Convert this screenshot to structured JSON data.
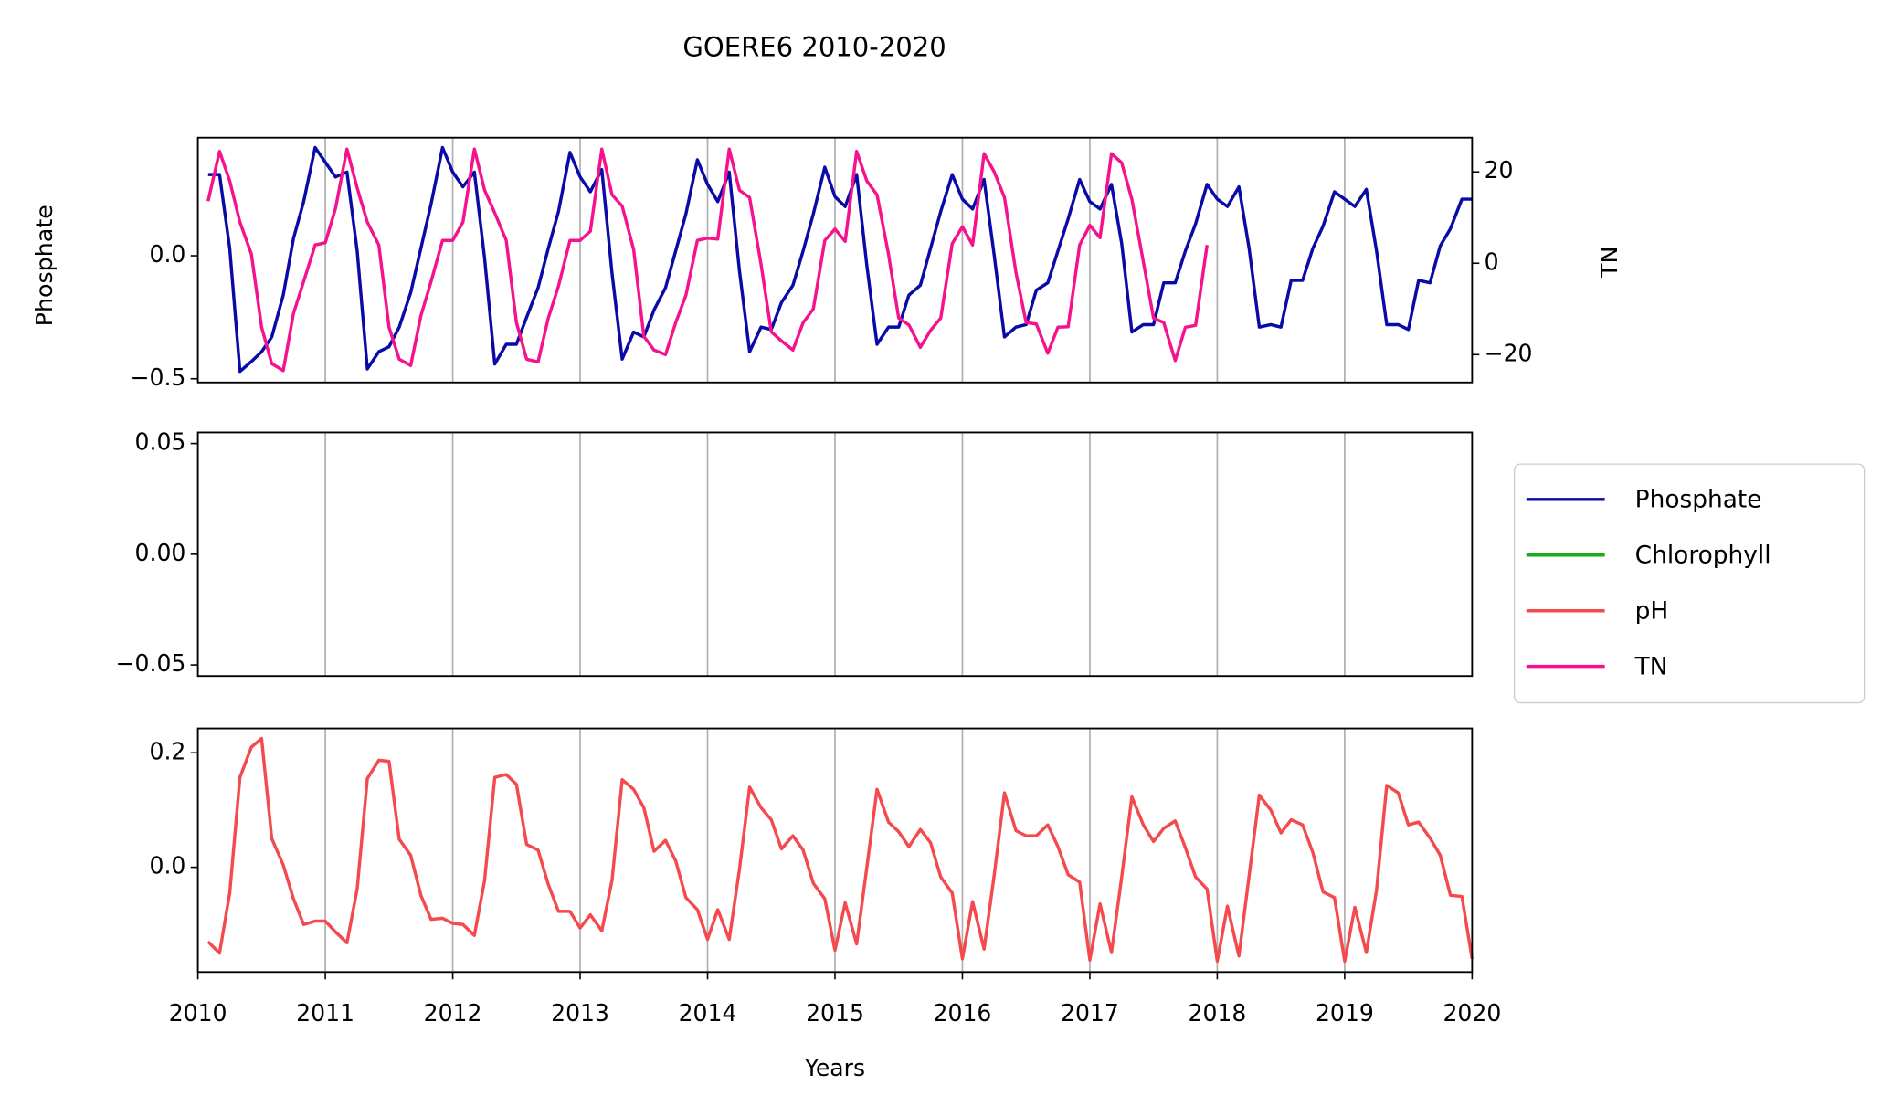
{
  "chart_data": [
    {
      "type": "line",
      "title": "GOERE6 2010-2020",
      "ylabel": "Phosphate",
      "y2label": "TN",
      "xlim": [
        2010,
        2020
      ],
      "xticks": [
        2010,
        2011,
        2012,
        2013,
        2014,
        2015,
        2016,
        2017,
        2018,
        2019,
        2020
      ],
      "ylim": [
        -0.515,
        0.48
      ],
      "yticks": [
        {
          "value": -0.5,
          "label": "−0.5"
        },
        {
          "value": 0,
          "label": "0.0"
        }
      ],
      "y2lim": [
        -26.1,
        27.5
      ],
      "y2ticks": [
        {
          "value": -20,
          "label": "−20"
        },
        0,
        20
      ],
      "grid": "x",
      "x": [
        2010.08,
        2010.17,
        2010.25,
        2010.33,
        2010.42,
        2010.5,
        2010.58,
        2010.67,
        2010.75,
        2010.83,
        2010.92,
        2011,
        2011.08,
        2011.17,
        2011.25,
        2011.33,
        2011.42,
        2011.5,
        2011.58,
        2011.67,
        2011.75,
        2011.83,
        2011.92,
        2012,
        2012.08,
        2012.17,
        2012.25,
        2012.33,
        2012.42,
        2012.5,
        2012.58,
        2012.67,
        2012.75,
        2012.83,
        2012.92,
        2013,
        2013.08,
        2013.17,
        2013.25,
        2013.33,
        2013.42,
        2013.5,
        2013.58,
        2013.67,
        2013.75,
        2013.83,
        2013.92,
        2014,
        2014.08,
        2014.17,
        2014.25,
        2014.33,
        2014.42,
        2014.5,
        2014.58,
        2014.67,
        2014.75,
        2014.83,
        2014.92,
        2015,
        2015.08,
        2015.17,
        2015.25,
        2015.33,
        2015.42,
        2015.5,
        2015.58,
        2015.67,
        2015.75,
        2015.83,
        2015.92,
        2016,
        2016.08,
        2016.17,
        2016.25,
        2016.33,
        2016.42,
        2016.5,
        2016.58,
        2016.67,
        2016.75,
        2016.83,
        2016.92,
        2017,
        2017.08,
        2017.17,
        2017.25,
        2017.33,
        2017.42,
        2017.5,
        2017.58,
        2017.67,
        2017.75,
        2017.83,
        2017.92,
        2018,
        2018.08,
        2018.17,
        2018.25,
        2018.33,
        2018.42,
        2018.5,
        2018.58,
        2018.67,
        2018.75,
        2018.83,
        2018.92,
        2019,
        2019.08,
        2019.17,
        2019.25,
        2019.33,
        2019.42,
        2019.5,
        2019.58,
        2019.67,
        2019.75,
        2019.83,
        2019.92,
        2020
      ],
      "series": [
        {
          "name": "Phosphate",
          "color": "#0a0aa8",
          "values": [
            0.33,
            0.33,
            0.03,
            -0.47,
            -0.43,
            -0.39,
            -0.33,
            -0.16,
            0.07,
            0.22,
            0.44,
            0.38,
            0.32,
            0.34,
            0.02,
            -0.46,
            -0.39,
            -0.37,
            -0.29,
            -0.15,
            0.03,
            0.21,
            0.44,
            0.34,
            0.28,
            0.34,
            -0.01,
            -0.44,
            -0.36,
            -0.36,
            -0.25,
            -0.13,
            0.03,
            0.18,
            0.42,
            0.32,
            0.26,
            0.35,
            -0.07,
            -0.42,
            -0.31,
            -0.33,
            -0.22,
            -0.13,
            0.02,
            0.17,
            0.39,
            0.29,
            0.22,
            0.34,
            -0.06,
            -0.39,
            -0.29,
            -0.3,
            -0.19,
            -0.12,
            0.02,
            0.17,
            0.36,
            0.24,
            0.2,
            0.33,
            -0.04,
            -0.36,
            -0.29,
            -0.29,
            -0.16,
            -0.12,
            0.03,
            0.18,
            0.33,
            0.23,
            0.19,
            0.31,
            0.0,
            -0.33,
            -0.29,
            -0.28,
            -0.14,
            -0.11,
            0.02,
            0.15,
            0.31,
            0.22,
            0.19,
            0.29,
            0.05,
            -0.31,
            -0.28,
            -0.28,
            -0.11,
            -0.11,
            0.02,
            0.13,
            0.29,
            0.23,
            0.2,
            0.28,
            0.03,
            -0.29,
            -0.28,
            -0.29,
            -0.1,
            -0.1,
            0.03,
            0.12,
            0.26,
            0.23,
            0.2,
            0.27,
            0.02,
            -0.28,
            -0.28,
            -0.3,
            -0.1,
            -0.11,
            0.04,
            0.11,
            0.23,
            0.23
          ]
        },
        {
          "name": "TN",
          "color": "#f5128c",
          "axis": "y2",
          "values": [
            13.6,
            24.5,
            18,
            9,
            2,
            -14,
            -22,
            -23.5,
            -11,
            -4,
            4,
            4.5,
            12,
            25,
            16.5,
            9,
            4,
            -14,
            -21,
            -22.4,
            -11.5,
            -4,
            5,
            5,
            9,
            25,
            16,
            11,
            5,
            -13,
            -21,
            -21.6,
            -12,
            -5,
            5,
            5,
            7,
            25,
            15,
            12.5,
            3,
            -16,
            -19,
            -20,
            -13,
            -7,
            5,
            5.5,
            5.3,
            25,
            16,
            14.4,
            -0.3,
            -15,
            -17,
            -19,
            -13,
            -10,
            5,
            7.5,
            4.8,
            24.5,
            18,
            15,
            2,
            -12,
            -13.5,
            -18.4,
            -14.7,
            -12,
            4.3,
            8,
            4,
            24,
            20,
            14.4,
            -2,
            -13,
            -13.3,
            -19.7,
            -14,
            -13.9,
            4,
            8.3,
            5.6,
            24,
            22,
            14,
            0.3,
            -12,
            -13,
            -21.3,
            -14,
            -13.6,
            4,
            null,
            null,
            null,
            null,
            null,
            null,
            null,
            null,
            null,
            null,
            null,
            null,
            null,
            null,
            null,
            null,
            null,
            null,
            null,
            null,
            null,
            null,
            null,
            null,
            null
          ]
        }
      ]
    },
    {
      "type": "line",
      "xlim": [
        2010,
        2020
      ],
      "xticks": [
        2010,
        2011,
        2012,
        2013,
        2014,
        2015,
        2016,
        2017,
        2018,
        2019,
        2020
      ],
      "ylim": [
        -0.055,
        0.055
      ],
      "yticks": [
        {
          "value": -0.05,
          "label": "−0.05"
        },
        {
          "value": 0,
          "label": "0.00"
        },
        {
          "value": 0.05,
          "label": "0.05"
        }
      ],
      "grid": "x",
      "x": [],
      "series": [
        {
          "name": "Chlorophyll",
          "color": "#1aaa1a",
          "values": []
        }
      ]
    },
    {
      "type": "line",
      "xlabel": "Years",
      "xlim": [
        2010,
        2020
      ],
      "xticks": [
        2010,
        2011,
        2012,
        2013,
        2014,
        2015,
        2016,
        2017,
        2018,
        2019,
        2020
      ],
      "ylim": [
        -0.183,
        0.2426
      ],
      "yticks": [
        {
          "value": 0,
          "label": "0.0"
        },
        {
          "value": 0.2,
          "label": "0.2"
        }
      ],
      "grid": "x",
      "x": [
        2010.08,
        2010.17,
        2010.25,
        2010.33,
        2010.42,
        2010.5,
        2010.58,
        2010.67,
        2010.75,
        2010.83,
        2010.92,
        2011,
        2011.08,
        2011.17,
        2011.25,
        2011.33,
        2011.42,
        2011.5,
        2011.58,
        2011.67,
        2011.75,
        2011.83,
        2011.92,
        2012,
        2012.08,
        2012.17,
        2012.25,
        2012.33,
        2012.42,
        2012.5,
        2012.58,
        2012.67,
        2012.75,
        2012.83,
        2012.92,
        2013,
        2013.08,
        2013.17,
        2013.25,
        2013.33,
        2013.42,
        2013.5,
        2013.58,
        2013.67,
        2013.75,
        2013.83,
        2013.92,
        2014,
        2014.08,
        2014.17,
        2014.25,
        2014.33,
        2014.42,
        2014.5,
        2014.58,
        2014.67,
        2014.75,
        2014.83,
        2014.92,
        2015,
        2015.08,
        2015.17,
        2015.25,
        2015.33,
        2015.42,
        2015.5,
        2015.58,
        2015.67,
        2015.75,
        2015.83,
        2015.92,
        2016,
        2016.08,
        2016.17,
        2016.25,
        2016.33,
        2016.42,
        2016.5,
        2016.58,
        2016.67,
        2016.75,
        2016.83,
        2016.92,
        2017,
        2017.08,
        2017.17,
        2017.25,
        2017.33,
        2017.42,
        2017.5,
        2017.58,
        2017.67,
        2017.75,
        2017.83,
        2017.92,
        2018,
        2018.08,
        2018.17,
        2018.25,
        2018.33,
        2018.42,
        2018.5,
        2018.58,
        2018.67,
        2018.75,
        2018.83,
        2018.92,
        2019,
        2019.08,
        2019.17,
        2019.25,
        2019.33,
        2019.42,
        2019.5,
        2019.58,
        2019.67,
        2019.75,
        2019.83,
        2019.92,
        2020
      ],
      "series": [
        {
          "name": "pH",
          "color": "#f44a4e",
          "values": [
            -0.13,
            -0.15,
            -0.045,
            0.157,
            0.21,
            0.225,
            0.05,
            0.004,
            -0.055,
            -0.1,
            -0.094,
            -0.094,
            -0.113,
            -0.132,
            -0.038,
            0.155,
            0.187,
            0.185,
            0.049,
            0.021,
            -0.049,
            -0.091,
            -0.089,
            -0.098,
            -0.1,
            -0.119,
            -0.023,
            0.157,
            0.162,
            0.145,
            0.04,
            0.03,
            -0.03,
            -0.077,
            -0.077,
            -0.106,
            -0.083,
            -0.111,
            -0.023,
            0.153,
            0.136,
            0.104,
            0.028,
            0.047,
            0.011,
            -0.053,
            -0.074,
            -0.126,
            -0.074,
            -0.126,
            -0.004,
            0.14,
            0.104,
            0.083,
            0.032,
            0.055,
            0.03,
            -0.028,
            -0.055,
            -0.145,
            -0.062,
            -0.134,
            0.0,
            0.136,
            0.079,
            0.062,
            0.036,
            0.066,
            0.043,
            -0.017,
            -0.045,
            -0.16,
            -0.06,
            -0.143,
            -0.013,
            0.13,
            0.064,
            0.055,
            0.055,
            0.074,
            0.036,
            -0.013,
            -0.026,
            -0.162,
            -0.064,
            -0.149,
            -0.017,
            0.123,
            0.074,
            0.045,
            0.068,
            0.081,
            0.034,
            -0.017,
            -0.038,
            -0.164,
            -0.068,
            -0.155,
            -0.015,
            0.126,
            0.1,
            0.06,
            0.083,
            0.074,
            0.026,
            -0.043,
            -0.053,
            -0.164,
            -0.07,
            -0.149,
            -0.04,
            0.143,
            0.13,
            0.074,
            0.079,
            0.051,
            0.021,
            -0.049,
            -0.051,
            -0.16
          ]
        }
      ]
    }
  ]
}
